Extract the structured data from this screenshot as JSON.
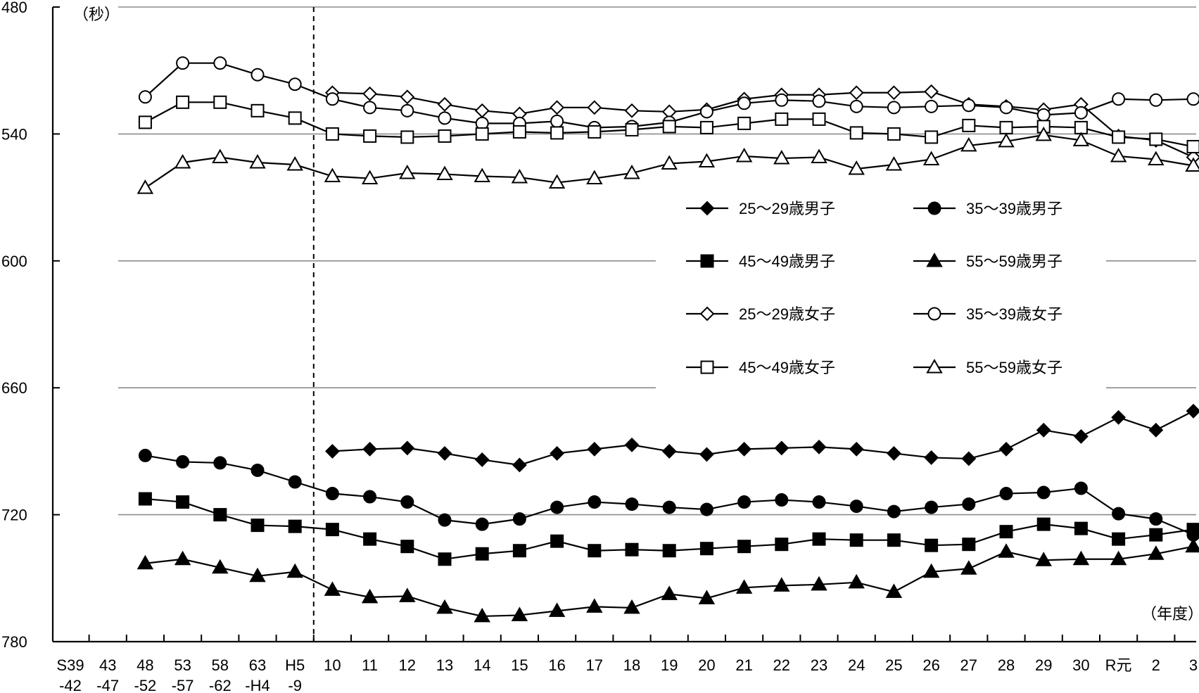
{
  "chart_data": {
    "type": "line",
    "y_unit_label": "（秒）",
    "x_unit_label": "（年度）",
    "y_axis": {
      "min": 480,
      "max": 780,
      "inverted": true,
      "ticks": [
        "480",
        "540",
        "600",
        "660",
        "720",
        "780"
      ]
    },
    "categories": [
      {
        "top": "S39",
        "bottom": "-42"
      },
      {
        "top": "43",
        "bottom": "-47"
      },
      {
        "top": "48",
        "bottom": "-52"
      },
      {
        "top": "53",
        "bottom": "-57"
      },
      {
        "top": "58",
        "bottom": "-62"
      },
      {
        "top": "63",
        "bottom": "-H4"
      },
      {
        "top": "H5",
        "bottom": "-9"
      },
      {
        "top": "10",
        "bottom": ""
      },
      {
        "top": "11",
        "bottom": ""
      },
      {
        "top": "12",
        "bottom": ""
      },
      {
        "top": "13",
        "bottom": ""
      },
      {
        "top": "14",
        "bottom": ""
      },
      {
        "top": "15",
        "bottom": ""
      },
      {
        "top": "16",
        "bottom": ""
      },
      {
        "top": "17",
        "bottom": ""
      },
      {
        "top": "18",
        "bottom": ""
      },
      {
        "top": "19",
        "bottom": ""
      },
      {
        "top": "20",
        "bottom": ""
      },
      {
        "top": "21",
        "bottom": ""
      },
      {
        "top": "22",
        "bottom": ""
      },
      {
        "top": "23",
        "bottom": ""
      },
      {
        "top": "24",
        "bottom": ""
      },
      {
        "top": "25",
        "bottom": ""
      },
      {
        "top": "26",
        "bottom": ""
      },
      {
        "top": "27",
        "bottom": ""
      },
      {
        "top": "28",
        "bottom": ""
      },
      {
        "top": "29",
        "bottom": ""
      },
      {
        "top": "30",
        "bottom": ""
      },
      {
        "top": "R元",
        "bottom": ""
      },
      {
        "top": "2",
        "bottom": ""
      },
      {
        "top": "3",
        "bottom": ""
      }
    ],
    "divider_after_category": "H5",
    "series": [
      {
        "name": "25～29歳男子",
        "marker": "diamond",
        "filled": true,
        "values": [
          null,
          null,
          null,
          null,
          null,
          null,
          null,
          690,
          689,
          688.5,
          691,
          694,
          696.5,
          691,
          689,
          687,
          690,
          691.5,
          689,
          688.5,
          688,
          689,
          691,
          693,
          693.5,
          689,
          680,
          683,
          674,
          680,
          671
        ]
      },
      {
        "name": "35～39歳男子",
        "marker": "circle",
        "filled": true,
        "values": [
          null,
          null,
          692,
          695,
          695.5,
          699,
          704.5,
          710,
          711.5,
          714,
          722.5,
          724.5,
          722,
          716.5,
          714,
          715,
          716.5,
          717.5,
          714,
          713,
          714,
          716,
          718.5,
          716.5,
          715,
          710,
          709.5,
          707.5,
          719.5,
          722,
          729.5
        ]
      },
      {
        "name": "45～49歳男子",
        "marker": "square",
        "filled": true,
        "values": [
          null,
          null,
          712.5,
          714,
          720,
          725,
          725.5,
          727,
          731.5,
          735,
          741,
          738.5,
          737,
          732.5,
          737,
          736.5,
          737,
          736,
          735,
          734,
          731.5,
          732,
          732,
          734.5,
          734,
          728,
          724.5,
          726.5,
          731.5,
          729.5,
          727
        ]
      },
      {
        "name": "55～59歳男子",
        "marker": "triangle",
        "filled": true,
        "values": [
          null,
          null,
          743,
          741,
          745,
          749,
          747,
          755.5,
          759,
          758.5,
          764,
          768,
          767.5,
          765.5,
          763.5,
          764,
          757.5,
          759.5,
          754.5,
          753.5,
          753,
          752,
          756.5,
          747,
          745.5,
          737.5,
          741.5,
          741,
          741,
          738.5,
          735
        ]
      },
      {
        "name": "25～29歳女子",
        "marker": "diamond",
        "filled": false,
        "values": [
          null,
          null,
          null,
          null,
          null,
          null,
          null,
          520.5,
          521,
          522.5,
          526,
          529,
          530.5,
          527.5,
          527.5,
          529,
          529.5,
          528.5,
          523.5,
          521.5,
          521.5,
          520.5,
          520.5,
          520,
          526,
          527,
          528.5,
          526,
          541,
          543,
          551
        ]
      },
      {
        "name": "35～39歳女子",
        "marker": "circle",
        "filled": false,
        "values": [
          null,
          null,
          522.5,
          506.5,
          506.5,
          512,
          516.5,
          523.5,
          527.5,
          529,
          532.5,
          535,
          535,
          534,
          537,
          536.5,
          534.5,
          529.5,
          525.5,
          524,
          524.5,
          527,
          527.5,
          527,
          526.5,
          527.5,
          531,
          530,
          523.5,
          524,
          523.5
        ]
      },
      {
        "name": "45～49歳女子",
        "marker": "square",
        "filled": false,
        "values": [
          null,
          null,
          534.5,
          525,
          525,
          529,
          532.5,
          540,
          541,
          541.5,
          541,
          540,
          539,
          539.5,
          539,
          538,
          536.5,
          537,
          535,
          533,
          533,
          539.5,
          540,
          541.5,
          536,
          537,
          536.5,
          537,
          541.5,
          542.5,
          546
        ]
      },
      {
        "name": "55～59歳女子",
        "marker": "triangle",
        "filled": false,
        "values": [
          null,
          null,
          565.5,
          553.5,
          551,
          553.5,
          554.5,
          560,
          561,
          558.5,
          559,
          560,
          560.5,
          563,
          561,
          558.5,
          554,
          553,
          550.5,
          551.5,
          551,
          556.5,
          554.5,
          552,
          545.5,
          543.5,
          540.5,
          543,
          550.5,
          552,
          555
        ]
      }
    ],
    "legend": {
      "location": "right-middle",
      "columns": 2
    }
  }
}
